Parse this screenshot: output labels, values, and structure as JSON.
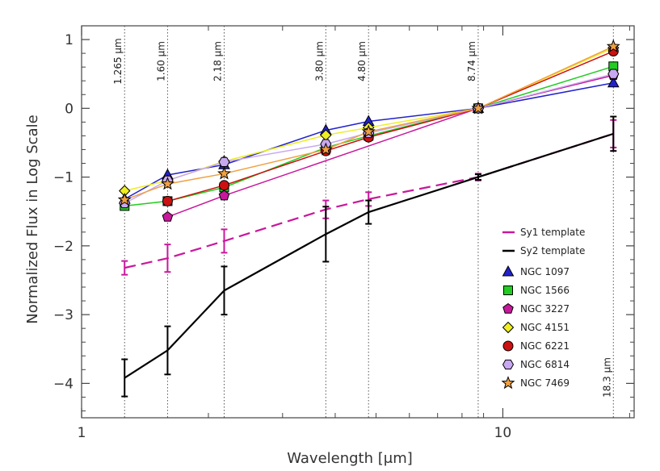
{
  "chart_data": {
    "type": "line",
    "xlabel": "Wavelength [μm]",
    "ylabel": "Normalized Flux in Log Scale",
    "xscale": "log",
    "xlim": [
      1,
      20.5
    ],
    "ylim": [
      -4.5,
      1.2
    ],
    "x_ticks": [
      {
        "value": 1,
        "label": "1"
      },
      {
        "value": 10,
        "label": "10"
      }
    ],
    "y_ticks": [
      {
        "value": 1,
        "label": "1"
      },
      {
        "value": 0,
        "label": "0"
      },
      {
        "value": -1,
        "label": "−1"
      },
      {
        "value": -2,
        "label": "−2"
      },
      {
        "value": -3,
        "label": "−3"
      },
      {
        "value": -4,
        "label": "−4"
      }
    ],
    "reference_lines": [
      {
        "x": 1.265,
        "label": "1.265 μm"
      },
      {
        "x": 1.6,
        "label": "1.60 μm"
      },
      {
        "x": 2.18,
        "label": "2.18 μm"
      },
      {
        "x": 3.8,
        "label": "3.80 μm"
      },
      {
        "x": 4.8,
        "label": "4.80 μm"
      },
      {
        "x": 8.74,
        "label": "8.74 μm"
      },
      {
        "x": 18.3,
        "label": "18.3 μm"
      }
    ],
    "templates": [
      {
        "name": "Sy1 template",
        "color": "#c8189c",
        "dashed": true,
        "x": [
          1.265,
          1.6,
          2.18,
          3.8,
          4.8,
          8.74,
          18.3
        ],
        "y": [
          -2.32,
          -2.18,
          -1.93,
          -1.47,
          -1.32,
          -1.0,
          -0.37
        ],
        "err": [
          0.1,
          0.2,
          0.17,
          0.13,
          0.1,
          0.05,
          0.2
        ]
      },
      {
        "name": "Sy2 template",
        "color": "#000000",
        "dashed": false,
        "x": [
          1.265,
          1.6,
          2.18,
          3.8,
          4.8,
          8.74,
          18.3
        ],
        "y": [
          -3.92,
          -3.52,
          -2.65,
          -1.83,
          -1.51,
          -1.0,
          -0.37
        ],
        "err": [
          0.27,
          0.35,
          0.35,
          0.4,
          0.17,
          0.04,
          0.25
        ]
      }
    ],
    "series": [
      {
        "name": "NGC 1097",
        "color": "#2222cc",
        "marker": "triangle",
        "x": [
          1.265,
          1.6,
          2.18,
          3.8,
          4.8,
          8.74,
          18.3
        ],
        "y": [
          -1.32,
          -0.97,
          -0.82,
          -0.32,
          -0.19,
          0.0,
          0.37
        ]
      },
      {
        "name": "NGC 1566",
        "color": "#22cc22",
        "marker": "square",
        "x": [
          1.265,
          1.6,
          2.18,
          3.8,
          4.8,
          8.74,
          18.3
        ],
        "y": [
          -1.42,
          -1.35,
          -1.15,
          -0.57,
          -0.4,
          0.0,
          0.61
        ]
      },
      {
        "name": "NGC 3227",
        "color": "#c8189c",
        "marker": "pentagon",
        "x": [
          1.6,
          2.18,
          8.74,
          18.3
        ],
        "y": [
          -1.58,
          -1.27,
          0.0,
          0.48
        ]
      },
      {
        "name": "NGC 4151",
        "color": "#eeee22",
        "marker": "diamond",
        "x": [
          1.265,
          1.6,
          2.18,
          3.8,
          4.8,
          8.74,
          18.3
        ],
        "y": [
          -1.2,
          -1.05,
          -0.77,
          -0.39,
          -0.28,
          0.0,
          0.88
        ]
      },
      {
        "name": "NGC 6221",
        "color": "#cc1111",
        "marker": "circle",
        "x": [
          1.6,
          2.18,
          3.8,
          4.8,
          8.74,
          18.3
        ],
        "y": [
          -1.35,
          -1.12,
          -0.62,
          -0.42,
          0.0,
          0.83
        ]
      },
      {
        "name": "NGC 6814",
        "color": "#c8a8f0",
        "marker": "hexagon",
        "x": [
          1.265,
          1.6,
          2.18,
          3.8,
          4.8,
          8.74,
          18.3
        ],
        "y": [
          -1.38,
          -1.05,
          -0.78,
          -0.52,
          -0.36,
          0.0,
          0.5
        ]
      },
      {
        "name": "NGC 7469",
        "color": "#f0a040",
        "marker": "star",
        "x": [
          1.265,
          1.6,
          2.18,
          3.8,
          4.8,
          8.74,
          18.3
        ],
        "y": [
          -1.33,
          -1.1,
          -0.95,
          -0.6,
          -0.34,
          0.0,
          0.9
        ]
      }
    ],
    "legend": {
      "position": "lower-right"
    }
  }
}
